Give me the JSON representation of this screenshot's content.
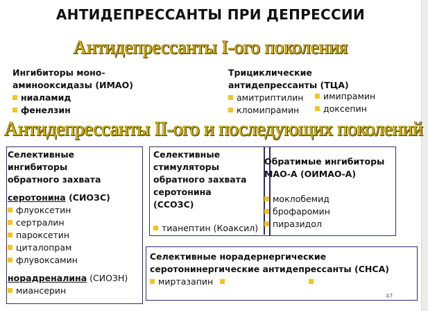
{
  "title": "АНТИДЕПРЕССАНТЫ ПРИ ДЕПРЕССИИ",
  "gen1": {
    "heading": "Антидепрессанты I-ого поколения",
    "imao": {
      "title_line1": "Ингибиторы моно-",
      "title_line2": "аминооксидазы (ИМАО)",
      "items": [
        "ниаламид",
        "фенелзин"
      ]
    },
    "tca": {
      "title_line1": "Трициклические",
      "title_line2": "антидепрессанты (ТЦА)",
      "items": [
        "амитриптилин",
        "имипрамин",
        "кломипрамин",
        "доксепин"
      ]
    }
  },
  "gen2": {
    "heading": "Антидепрессанты II-ого и последующих поколений",
    "ssri": {
      "title_lines": [
        "Селективные",
        "ингибиторы",
        "обратного захвата"
      ],
      "serotonin_word": "серотонина",
      "serotonin_abbr": " (СИОЗС)",
      "items": [
        "флуоксетин",
        "сертралин",
        "пароксетин",
        "циталопрам",
        "флувоксамин"
      ],
      "norad_word": "норадреналина",
      "norad_abbr": " (СИОЗН)",
      "norad_items": [
        "миансерин"
      ]
    },
    "ssre": {
      "title_lines": [
        "Селективные",
        "стимуляторы",
        "обратного захвата",
        "серотонина",
        "(ССОЗС)"
      ],
      "items": [
        "тианептин (Коаксил)"
      ]
    },
    "rima": {
      "title_lines": [
        "Обратимые ингибиторы",
        "МАО-А (ОИМАО-А)"
      ],
      "items": [
        "моклобемид",
        "брофаромин",
        "пиразидол"
      ]
    },
    "nassa": {
      "title_lines": [
        "Селективные норадернергические",
        "серотонинергические антидепрессанты (СНСА)"
      ],
      "items": [
        "миртазапин"
      ]
    }
  },
  "slide_number": "47",
  "colors": {
    "bullet": "#f5c518",
    "box_border": "#2e2a6e",
    "heading_gold": "#d9b400"
  }
}
